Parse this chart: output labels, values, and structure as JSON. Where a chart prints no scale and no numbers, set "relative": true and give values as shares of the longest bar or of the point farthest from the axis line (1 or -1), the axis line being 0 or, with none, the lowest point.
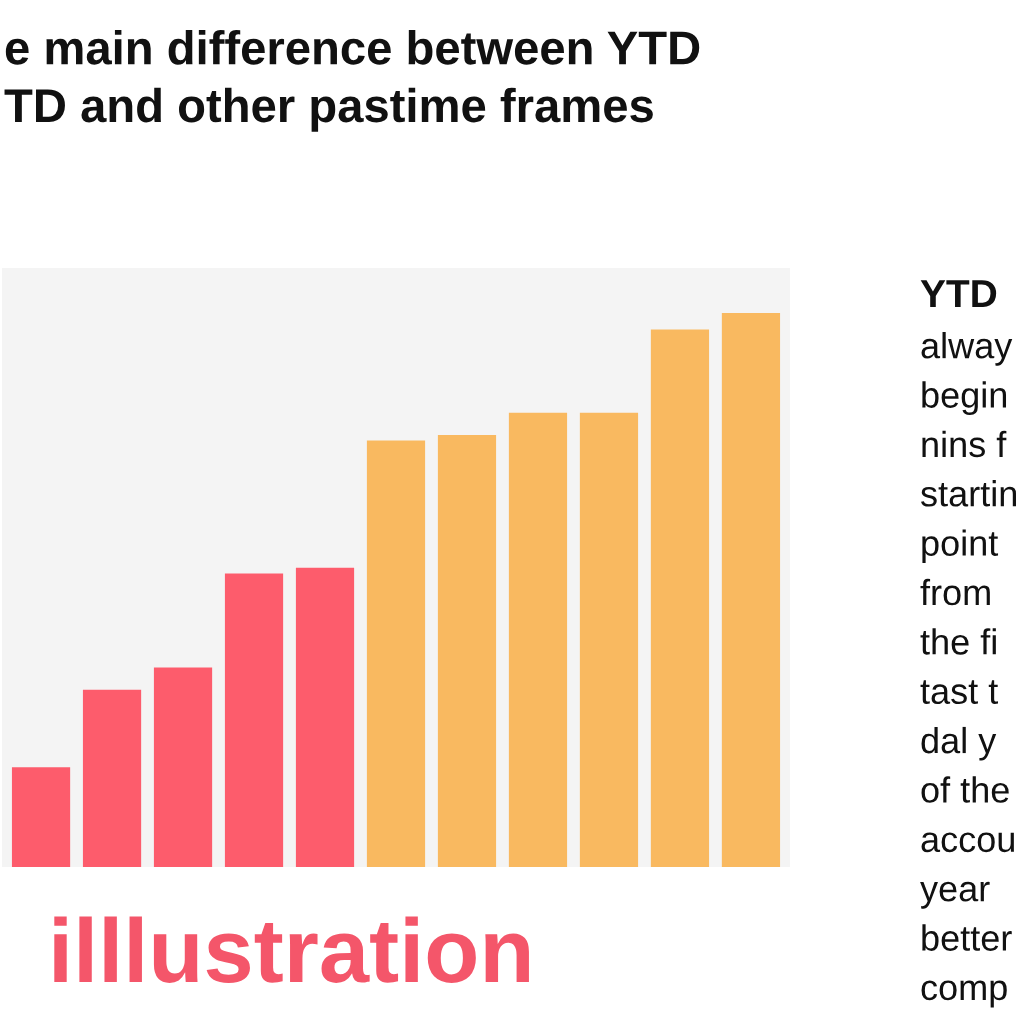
{
  "chart_data": {
    "type": "bar",
    "title": "e main difference between YTD\nTD and other pastime frames",
    "categories": [
      null,
      null,
      null,
      null,
      null,
      null,
      null,
      null,
      null,
      null,
      null
    ],
    "values": [
      0.18,
      0.32,
      0.36,
      0.53,
      0.54,
      0.77,
      0.78,
      0.82,
      0.82,
      0.97,
      1.0
    ],
    "colors": [
      "#fd5c6c",
      "#fd5c6c",
      "#fd5c6c",
      "#fd5c6c",
      "#fd5c6c",
      "#f9b960",
      "#f9b960",
      "#f9b960",
      "#f9b960",
      "#f9b960",
      "#f9b960"
    ],
    "relative": true,
    "annotations": [
      "illlustration",
      "YTD",
      "alway\nbegin\nnins f\nstartin\npoint\nfrom\nthe fi\ntast t\ndal y\nof the\naccou\nyear\nbetter\ncomp"
    ]
  }
}
